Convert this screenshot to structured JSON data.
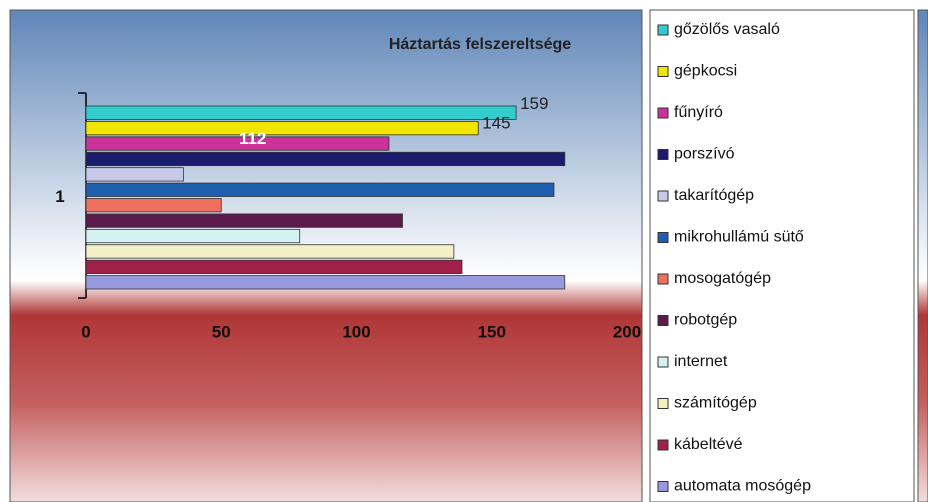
{
  "chart_data": {
    "type": "bar",
    "orientation": "horizontal",
    "title": "Háztartás felszereltsége",
    "categories": [
      "1"
    ],
    "series": [
      {
        "name": "gőzölős vasaló",
        "color": "#33cccc",
        "values": [
          159
        ],
        "show_label": true
      },
      {
        "name": "gépkocsi",
        "color": "#f2e600",
        "values": [
          145
        ],
        "show_label": true
      },
      {
        "name": "fűnyíró",
        "color": "#cc3399",
        "values": [
          112
        ],
        "show_label": true
      },
      {
        "name": "porszívó",
        "color": "#1c1c6e",
        "values": [
          177
        ]
      },
      {
        "name": "takarítógép",
        "color": "#c8c8e8",
        "values": [
          36
        ]
      },
      {
        "name": "mikrohullámú sütő",
        "color": "#1f5fb0",
        "values": [
          173
        ]
      },
      {
        "name": "mosogatógép",
        "color": "#f07060",
        "values": [
          50
        ]
      },
      {
        "name": "robotgép",
        "color": "#5a1a4a",
        "values": [
          117
        ]
      },
      {
        "name": "internet",
        "color": "#d4f2f2",
        "values": [
          79
        ]
      },
      {
        "name": "számítógép",
        "color": "#f2f0c4",
        "values": [
          136
        ]
      },
      {
        "name": "kábeltévé",
        "color": "#a0204a",
        "values": [
          139
        ]
      },
      {
        "name": "automata mosógép",
        "color": "#9999dd",
        "values": [
          177
        ]
      }
    ],
    "xlim": [
      0,
      200
    ],
    "xticks": [
      0,
      50,
      100,
      150,
      200
    ],
    "legend": "right"
  }
}
